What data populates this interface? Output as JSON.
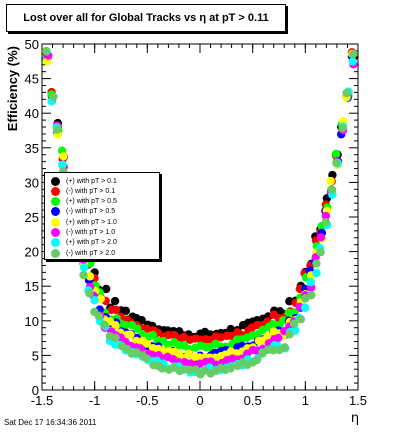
{
  "chart_data": {
    "type": "scatter",
    "title": "Lost over all for Global Tracks vs   η at pT > 0.11",
    "xlabel": "η",
    "ylabel": "Efficiency (%)",
    "xlim": [
      -1.5,
      1.5
    ],
    "ylim": [
      0,
      50
    ],
    "xticks": [
      "-1.5",
      "-1",
      "-0.5",
      "0",
      "0.5",
      "1",
      "1.5"
    ],
    "yticks": [
      "0",
      "5",
      "10",
      "15",
      "20",
      "25",
      "30",
      "35",
      "40",
      "45",
      "50"
    ],
    "grid": false,
    "legend_position": "left-middle",
    "series": [
      {
        "name": "(+) with pT > 0.1",
        "color": "#000000",
        "floor": 8.0
      },
      {
        "name": "(-) with pT > 0.1",
        "color": "#ff0000",
        "floor": 7.2
      },
      {
        "name": "(+) with pT > 0.5",
        "color": "#00ff00",
        "floor": 6.2
      },
      {
        "name": "(-) with pT > 0.5",
        "color": "#0000ff",
        "floor": 5.0
      },
      {
        "name": "(+) with pT > 1.0",
        "color": "#ffff00",
        "floor": 4.8
      },
      {
        "name": "(-) with pT > 1.0",
        "color": "#ff00ff",
        "floor": 3.8
      },
      {
        "name": "(+) with pT > 2.0",
        "color": "#00ffff",
        "floor": 2.8
      },
      {
        "name": "(-) with pT > 2.0",
        "color": "#66cc66",
        "floor": 2.6
      }
    ],
    "x": [
      -1.45,
      -1.4,
      -1.35,
      -1.3,
      -1.25,
      -1.2,
      -1.15,
      -1.1,
      -1.05,
      -1.0,
      -0.95,
      -0.9,
      -0.85,
      -0.8,
      -0.75,
      -0.7,
      -0.65,
      -0.6,
      -0.55,
      -0.5,
      -0.45,
      -0.4,
      -0.35,
      -0.3,
      -0.25,
      -0.2,
      -0.15,
      -0.1,
      -0.05,
      0.0,
      0.05,
      0.1,
      0.15,
      0.2,
      0.25,
      0.3,
      0.35,
      0.4,
      0.45,
      0.5,
      0.55,
      0.6,
      0.65,
      0.7,
      0.75,
      0.8,
      0.85,
      0.9,
      0.95,
      1.0,
      1.05,
      1.1,
      1.15,
      1.2,
      1.25,
      1.3,
      1.35,
      1.4,
      1.45
    ]
  },
  "footer": {
    "timestamp": "Sat Dec 17 16:34:36 2011"
  }
}
